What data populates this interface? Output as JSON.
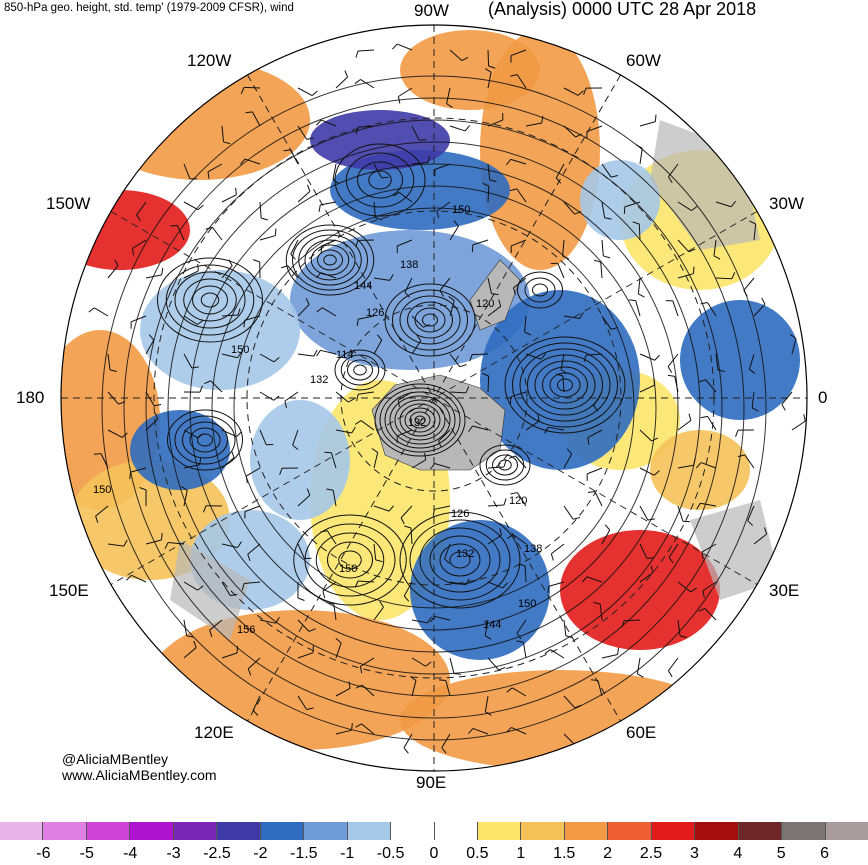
{
  "header": {
    "left_title": "850-hPa geo. height, std. temp' (1979-2009 CFSR), wind",
    "right_title": "(Analysis) 0000 UTC 28 Apr 2018"
  },
  "longitude_labels": {
    "lon_90w": "90W",
    "lon_120w": "120W",
    "lon_60w": "60W",
    "lon_150w": "150W",
    "lon_30w": "30W",
    "lon_180": "180",
    "lon_0": "0",
    "lon_150e": "150E",
    "lon_30e": "30E",
    "lon_120e": "120E",
    "lon_60e": "60E",
    "lon_90e": "90E"
  },
  "contour_labels": {
    "c1": "150",
    "c2": "138",
    "c3": "144",
    "c4": "126",
    "c5": "120",
    "c6": "114",
    "c7": "132",
    "c8": "150",
    "c9": "132",
    "c10": "150",
    "c11": "120",
    "c12": "126",
    "c13": "138",
    "c14": "132",
    "c15": "150",
    "c16": "144",
    "c17": "150",
    "c18": "156"
  },
  "credits": {
    "handle": "@AliciaMBentley",
    "website": "www.AliciaMBentley.com"
  },
  "colorbar": {
    "colors": [
      "#e9b4ea",
      "#e07fe4",
      "#cf45d8",
      "#ae13d0",
      "#7a27b8",
      "#3f3aa8",
      "#2f6cc0",
      "#6f9bd8",
      "#a5c8e8",
      "#ffffff",
      "#ffffff",
      "#fbe66a",
      "#f5c25a",
      "#f29a45",
      "#ef5d34",
      "#e21c1a",
      "#a50d0d",
      "#6e2727",
      "#7b7474",
      "#a89b9b"
    ],
    "ticks": [
      "-6",
      "-5",
      "-4",
      "-3",
      "-2.5",
      "-2",
      "-1.5",
      "-1",
      "-0.5",
      "0",
      "0.5",
      "1",
      "1.5",
      "2",
      "2.5",
      "3",
      "4",
      "5",
      "6"
    ],
    "map_colors": {
      "warm": "#f29a45",
      "hot": "#e21c1a",
      "yellow": "#fbe66a",
      "tan": "#f5c25a",
      "cold": "#2f6cc0",
      "cool": "#6f9bd8",
      "pale": "#a5c8e8",
      "deep": "#3f3aa8",
      "land": "#b8b8b8"
    }
  }
}
